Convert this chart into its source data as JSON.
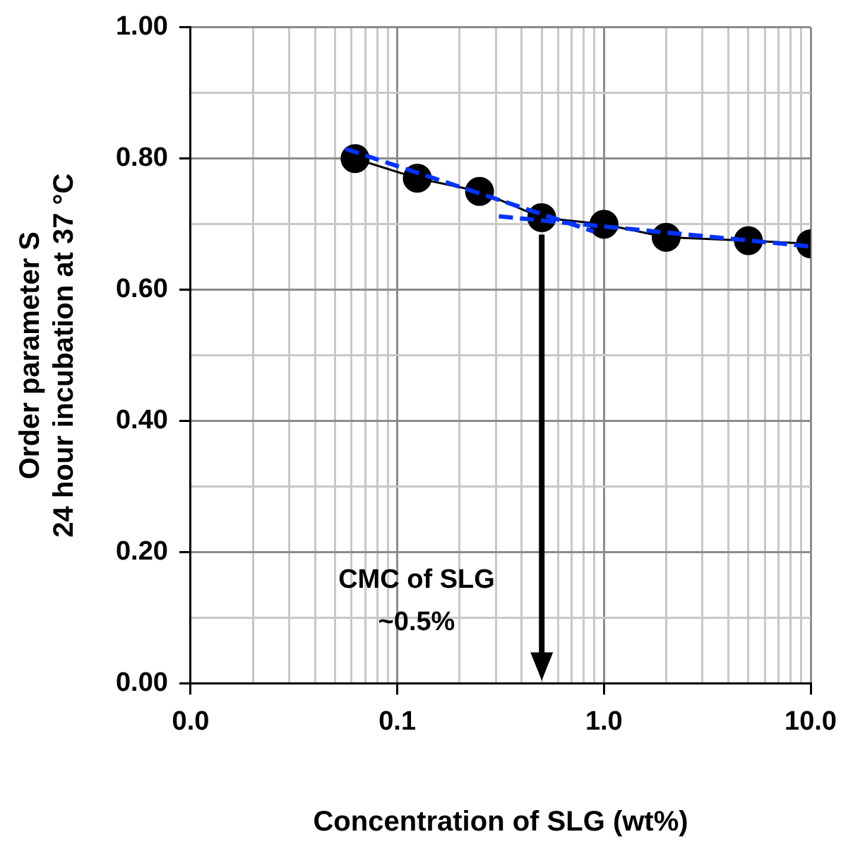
{
  "chart_data": {
    "type": "line",
    "xlabel": "Concentration of SLG (wt%)",
    "ylabel": "Order parameter S\n24 hour incubation at 37 °C",
    "log": "x",
    "xlim": [
      0.01,
      10
    ],
    "ylim": [
      0,
      1
    ],
    "xticks": [
      {
        "value": 0.01,
        "label": "0.0"
      },
      {
        "value": 0.02,
        "label": null
      },
      {
        "value": 0.03,
        "label": null
      },
      {
        "value": 0.04,
        "label": null
      },
      {
        "value": 0.05,
        "label": null
      },
      {
        "value": 0.06,
        "label": null
      },
      {
        "value": 0.07,
        "label": null
      },
      {
        "value": 0.08,
        "label": null
      },
      {
        "value": 0.09,
        "label": null
      },
      {
        "value": 0.1,
        "label": "0.1"
      },
      {
        "value": 0.2,
        "label": null
      },
      {
        "value": 0.3,
        "label": null
      },
      {
        "value": 0.4,
        "label": null
      },
      {
        "value": 0.5,
        "label": null
      },
      {
        "value": 0.6,
        "label": null
      },
      {
        "value": 0.7,
        "label": null
      },
      {
        "value": 0.8,
        "label": null
      },
      {
        "value": 0.9,
        "label": null
      },
      {
        "value": 1,
        "label": "1.0"
      },
      {
        "value": 2,
        "label": null
      },
      {
        "value": 3,
        "label": null
      },
      {
        "value": 4,
        "label": null
      },
      {
        "value": 5,
        "label": null
      },
      {
        "value": 6,
        "label": null
      },
      {
        "value": 7,
        "label": null
      },
      {
        "value": 8,
        "label": null
      },
      {
        "value": 9,
        "label": null
      },
      {
        "value": 10,
        "label": "10.0"
      }
    ],
    "yticks": [
      {
        "value": 0,
        "label": "0.00"
      },
      {
        "value": 0.1,
        "label": null
      },
      {
        "value": 0.2,
        "label": "0.20"
      },
      {
        "value": 0.3,
        "label": null
      },
      {
        "value": 0.4,
        "label": "0.40"
      },
      {
        "value": 0.5,
        "label": null
      },
      {
        "value": 0.6,
        "label": "0.60"
      },
      {
        "value": 0.7,
        "label": null
      },
      {
        "value": 0.8,
        "label": "0.80"
      },
      {
        "value": 0.9,
        "label": null
      },
      {
        "value": 1,
        "label": "1.00"
      }
    ],
    "grid": true,
    "legend": false,
    "series": [
      {
        "color": "#000000",
        "marker": "circle",
        "line_style": "solid",
        "x": [
          0.0625,
          0.125,
          0.25,
          0.5,
          1,
          2,
          5,
          10
        ],
        "values": [
          0.8,
          0.77,
          0.75,
          0.71,
          0.7,
          0.68,
          0.675,
          0.67
        ]
      },
      {
        "color": "#0033ff",
        "marker": "none",
        "line_style": "dashed",
        "x": [
          0.056,
          0.89
        ],
        "values": [
          0.815,
          0.689
        ]
      },
      {
        "color": "#0033ff",
        "marker": "none",
        "line_style": "dashed",
        "x": [
          0.31,
          10
        ],
        "values": [
          0.712,
          0.666
        ]
      }
    ],
    "ref_lines": [
      {
        "axis": "x",
        "value": 0.5,
        "color": "#000000"
      }
    ],
    "annotations": [
      "CMC of SLG\n~0.5%"
    ]
  }
}
